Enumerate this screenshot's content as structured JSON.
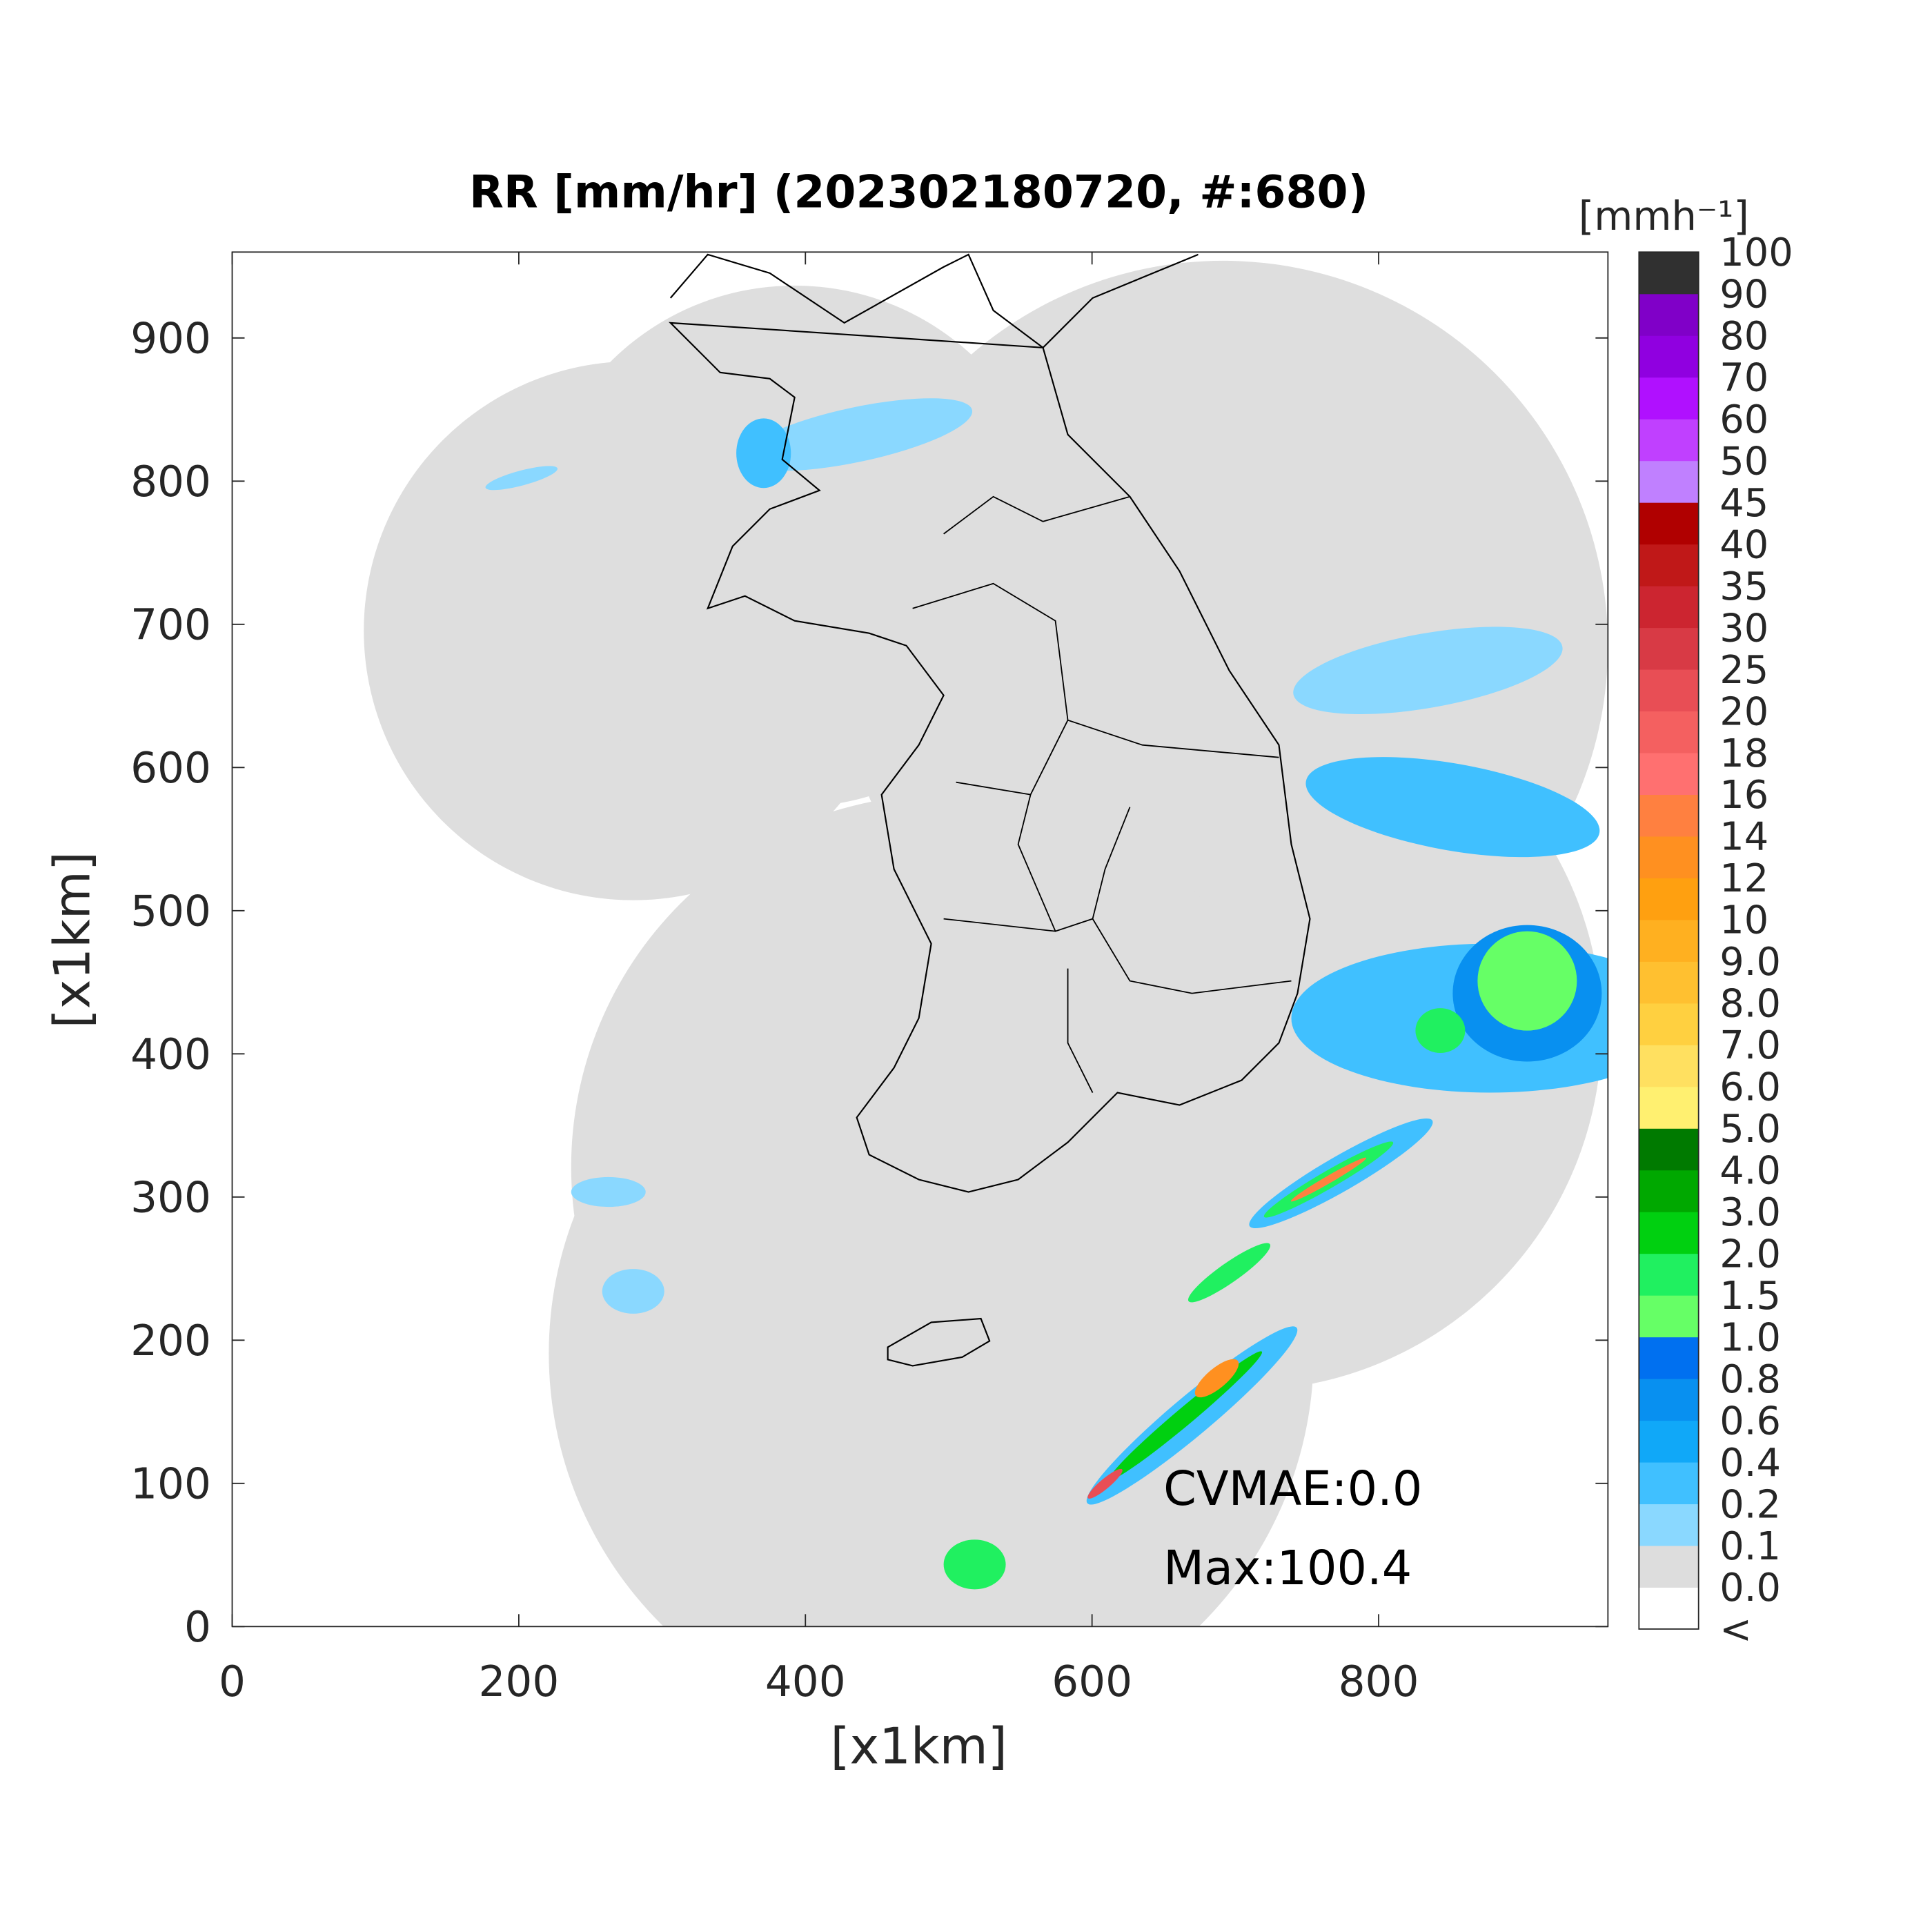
{
  "chart_data": {
    "type": "radar-map",
    "title": "RR [mm/hr] (202302180720, #:680)",
    "x_label": "[x1km]",
    "y_label": "[x1km]",
    "xlim": [
      0,
      960
    ],
    "ylim": [
      0,
      960
    ],
    "xticks": [
      0,
      200,
      400,
      600,
      800
    ],
    "yticks": [
      0,
      100,
      200,
      300,
      400,
      500,
      600,
      700,
      800,
      900
    ],
    "annotations": [
      "CVMAE:0.0",
      "Max:100.4"
    ],
    "colorbar": {
      "label": "[mmh⁻¹]",
      "labels": [
        "<",
        "0.0",
        "0.1",
        "0.2",
        "0.4",
        "0.6",
        "0.8",
        "1.0",
        "1.5",
        "2.0",
        "3.0",
        "4.0",
        "5.0",
        "6.0",
        "7.0",
        "8.0",
        "9.0",
        "10",
        "12",
        "14",
        "16",
        "18",
        "20",
        "25",
        "30",
        "35",
        "40",
        "45",
        "50",
        "60",
        "70",
        "80",
        "90",
        "100"
      ],
      "colors": [
        "#ffffff",
        "#dddddd",
        "#8ad8ff",
        "#40c0ff",
        "#10a8f8",
        "#0890f0",
        "#0070f0",
        "#66ff66",
        "#20f060",
        "#00d010",
        "#00a800",
        "#007a00",
        "#fff070",
        "#ffe060",
        "#ffd040",
        "#ffc030",
        "#ffb020",
        "#ffa010",
        "#ff9020",
        "#ff8040",
        "#ff7070",
        "#f46060",
        "#e84e55",
        "#d83a45",
        "#cc2530",
        "#c01818",
        "#b00000",
        "#c080ff",
        "#c040ff",
        "#b010ff",
        "#9000e0",
        "#8000c8",
        "#303030"
      ]
    }
  }
}
